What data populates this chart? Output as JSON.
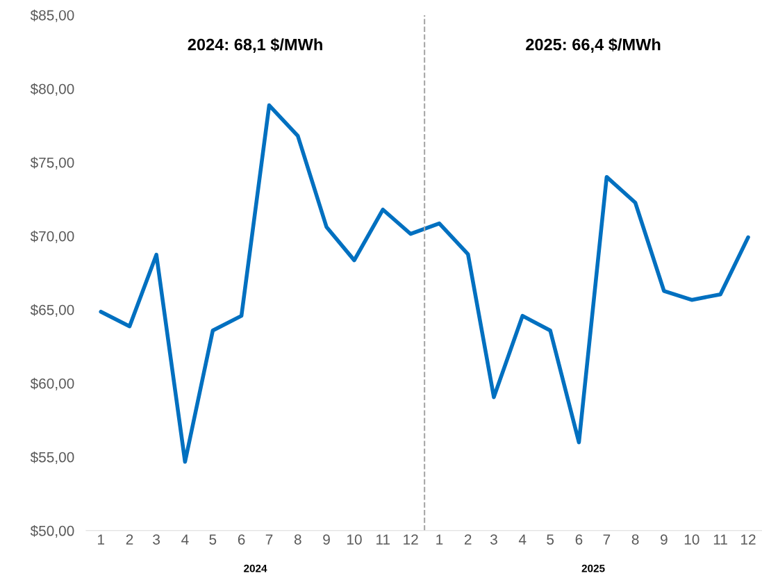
{
  "chart_data": {
    "type": "line",
    "x": [
      "2024-01",
      "2024-02",
      "2024-03",
      "2024-04",
      "2024-05",
      "2024-06",
      "2024-07",
      "2024-08",
      "2024-09",
      "2024-10",
      "2024-11",
      "2024-12",
      "2025-01",
      "2025-02",
      "2025-03",
      "2025-04",
      "2025-05",
      "2025-06",
      "2025-07",
      "2025-08",
      "2025-09",
      "2025-10",
      "2025-11",
      "2025-12"
    ],
    "series": [
      {
        "color": "#0070c0",
        "values": [
          64.86,
          63.87,
          68.73,
          54.67,
          63.58,
          64.58,
          78.87,
          76.79,
          70.61,
          68.35,
          71.79,
          70.14,
          70.85,
          68.77,
          59.06,
          64.58,
          63.58,
          55.99,
          74.01,
          72.26,
          66.27,
          65.66,
          66.04,
          69.91
        ]
      }
    ],
    "xlim": [
      "2023-12-16",
      "2025-12-16"
    ],
    "xticks": [
      {
        "value": "2024-01",
        "label": "1"
      },
      {
        "value": "2024-02",
        "label": "2"
      },
      {
        "value": "2024-03",
        "label": "3"
      },
      {
        "value": "2024-04",
        "label": "4"
      },
      {
        "value": "2024-05",
        "label": "5"
      },
      {
        "value": "2024-06",
        "label": "6"
      },
      {
        "value": "2024-07",
        "label": "7"
      },
      {
        "value": "2024-08",
        "label": "8"
      },
      {
        "value": "2024-09",
        "label": "9"
      },
      {
        "value": "2024-10",
        "label": "10"
      },
      {
        "value": "2024-11",
        "label": "11"
      },
      {
        "value": "2024-12",
        "label": "12"
      },
      {
        "value": "2025-01",
        "label": "1"
      },
      {
        "value": "2025-02",
        "label": "2"
      },
      {
        "value": "2025-03",
        "label": "3"
      },
      {
        "value": "2025-04",
        "label": "4"
      },
      {
        "value": "2025-05",
        "label": "5"
      },
      {
        "value": "2025-06",
        "label": "6"
      },
      {
        "value": "2025-07",
        "label": "7"
      },
      {
        "value": "2025-08",
        "label": "8"
      },
      {
        "value": "2025-09",
        "label": "9"
      },
      {
        "value": "2025-10",
        "label": "10"
      },
      {
        "value": "2025-11",
        "label": "11"
      },
      {
        "value": "2025-12",
        "label": "12"
      }
    ],
    "ylim": [
      50,
      85
    ],
    "yticks": [
      {
        "value": 50,
        "label": "$50,00"
      },
      {
        "value": 55,
        "label": "$55,00"
      },
      {
        "value": 60,
        "label": "$60,00"
      },
      {
        "value": 65,
        "label": "$65,00"
      },
      {
        "value": 70,
        "label": "$70,00"
      },
      {
        "value": 75,
        "label": "$75,00"
      },
      {
        "value": 80,
        "label": "$80,00"
      },
      {
        "value": 85,
        "label": "$85,00"
      }
    ],
    "ref_lines": [
      {
        "axis": "x",
        "value": "2024-12-16",
        "color": "#a6a6a6",
        "line_style": "dashed"
      }
    ],
    "annotations": [
      "2024: 68,1 $/MWh",
      "2025: 66,4 $/MWh",
      "2024",
      "2025"
    ],
    "grid": false,
    "marker": "none",
    "line_style": "solid"
  }
}
